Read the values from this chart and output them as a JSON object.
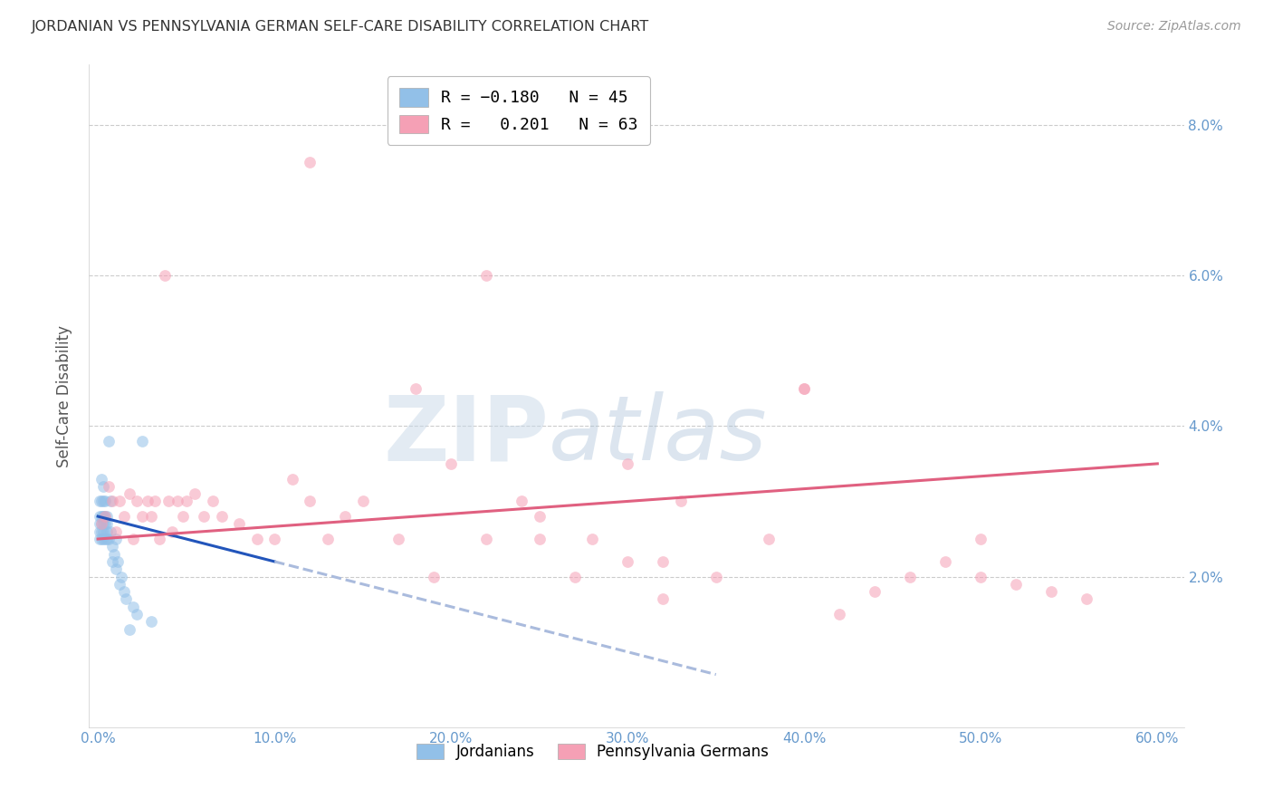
{
  "title": "JORDANIAN VS PENNSYLVANIA GERMAN SELF-CARE DISABILITY CORRELATION CHART",
  "source": "Source: ZipAtlas.com",
  "ylabel": "Self-Care Disability",
  "watermark_zip": "ZIP",
  "watermark_atlas": "atlas",
  "xlim": [
    -0.005,
    0.615
  ],
  "ylim": [
    0.0,
    0.088
  ],
  "xticks": [
    0.0,
    0.1,
    0.2,
    0.3,
    0.4,
    0.5,
    0.6
  ],
  "xtick_labels": [
    "0.0%",
    "10.0%",
    "20.0%",
    "30.0%",
    "40.0%",
    "50.0%",
    "60.0%"
  ],
  "yticks_right": [
    0.02,
    0.04,
    0.06,
    0.08
  ],
  "ytick_labels_right": [
    "2.0%",
    "4.0%",
    "6.0%",
    "8.0%"
  ],
  "color_jordanian": "#92C0E8",
  "color_pennger": "#F5A0B5",
  "color_line_jordanian": "#2255BB",
  "color_line_pennger": "#E06080",
  "color_dashed": "#AABBDD",
  "background_color": "#FFFFFF",
  "grid_color": "#CCCCCC",
  "title_color": "#333333",
  "axis_label_color": "#555555",
  "tick_color": "#6699CC",
  "marker_size": 85,
  "marker_alpha": 0.55,
  "line_width": 2.2,
  "jordanians_x": [
    0.001,
    0.001,
    0.001,
    0.001,
    0.001,
    0.002,
    0.002,
    0.002,
    0.002,
    0.002,
    0.002,
    0.003,
    0.003,
    0.003,
    0.003,
    0.003,
    0.003,
    0.003,
    0.004,
    0.004,
    0.004,
    0.004,
    0.005,
    0.005,
    0.005,
    0.005,
    0.006,
    0.006,
    0.007,
    0.007,
    0.008,
    0.008,
    0.009,
    0.01,
    0.01,
    0.011,
    0.012,
    0.013,
    0.015,
    0.016,
    0.018,
    0.02,
    0.022,
    0.025,
    0.03
  ],
  "jordanians_y": [
    0.025,
    0.027,
    0.028,
    0.03,
    0.026,
    0.025,
    0.03,
    0.033,
    0.028,
    0.027,
    0.026,
    0.028,
    0.025,
    0.027,
    0.03,
    0.026,
    0.028,
    0.032,
    0.025,
    0.027,
    0.028,
    0.03,
    0.026,
    0.025,
    0.028,
    0.027,
    0.025,
    0.038,
    0.026,
    0.03,
    0.024,
    0.022,
    0.023,
    0.021,
    0.025,
    0.022,
    0.019,
    0.02,
    0.018,
    0.017,
    0.013,
    0.016,
    0.015,
    0.038,
    0.014
  ],
  "pennger_x": [
    0.002,
    0.004,
    0.006,
    0.008,
    0.01,
    0.012,
    0.015,
    0.018,
    0.02,
    0.022,
    0.025,
    0.028,
    0.03,
    0.032,
    0.035,
    0.038,
    0.04,
    0.042,
    0.045,
    0.048,
    0.05,
    0.055,
    0.06,
    0.065,
    0.07,
    0.08,
    0.09,
    0.1,
    0.11,
    0.12,
    0.13,
    0.14,
    0.15,
    0.17,
    0.19,
    0.2,
    0.22,
    0.24,
    0.25,
    0.27,
    0.28,
    0.3,
    0.32,
    0.33,
    0.35,
    0.38,
    0.4,
    0.42,
    0.44,
    0.46,
    0.48,
    0.5,
    0.52,
    0.54,
    0.56,
    0.22,
    0.3,
    0.4,
    0.5,
    0.32,
    0.18,
    0.12,
    0.25
  ],
  "pennger_y": [
    0.027,
    0.028,
    0.032,
    0.03,
    0.026,
    0.03,
    0.028,
    0.031,
    0.025,
    0.03,
    0.028,
    0.03,
    0.028,
    0.03,
    0.025,
    0.06,
    0.03,
    0.026,
    0.03,
    0.028,
    0.03,
    0.031,
    0.028,
    0.03,
    0.028,
    0.027,
    0.025,
    0.025,
    0.033,
    0.03,
    0.025,
    0.028,
    0.03,
    0.025,
    0.02,
    0.035,
    0.025,
    0.03,
    0.025,
    0.02,
    0.025,
    0.022,
    0.017,
    0.03,
    0.02,
    0.025,
    0.045,
    0.015,
    0.018,
    0.02,
    0.022,
    0.02,
    0.019,
    0.018,
    0.017,
    0.06,
    0.035,
    0.045,
    0.025,
    0.022,
    0.045,
    0.075,
    0.028
  ],
  "line_jord_x0": 0.0,
  "line_jord_y0": 0.028,
  "line_jord_x1": 0.1,
  "line_jord_y1": 0.022,
  "line_dash_x0": 0.1,
  "line_dash_y0": 0.022,
  "line_dash_x1": 0.35,
  "line_dash_y1": 0.007,
  "line_penn_x0": 0.0,
  "line_penn_y0": 0.025,
  "line_penn_x1": 0.6,
  "line_penn_y1": 0.035
}
